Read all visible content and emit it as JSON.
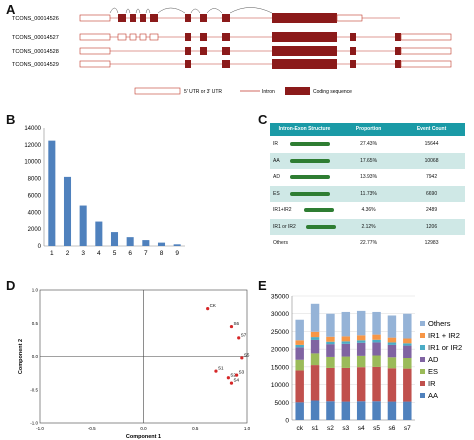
{
  "panels": {
    "a": "A",
    "b": "B",
    "c": "C",
    "d": "D",
    "e": "E"
  },
  "panel_a": {
    "transcripts": [
      "TCONS_00014526",
      "TCONS_00014527",
      "TCONS_00014528",
      "TCONS_00014529"
    ],
    "legend": {
      "utr": "5' UTR or 3' UTR",
      "intron": "Intron",
      "coding": "Coding sequence"
    },
    "colors": {
      "coding": "#8b1a1a",
      "utr_outline": "#c0392b",
      "intron": "#c0392b"
    }
  },
  "panel_c": {
    "headers": [
      "Intron-Exon Structure",
      "Proportion",
      "Event Count"
    ],
    "rows": [
      {
        "type": "IR",
        "proportion": "27.43%",
        "count": "15644"
      },
      {
        "type": "AA",
        "proportion": "17.65%",
        "count": "10068"
      },
      {
        "type": "AD",
        "proportion": "13.93%",
        "count": "7942"
      },
      {
        "type": "ES",
        "proportion": "11.73%",
        "count": "6690"
      },
      {
        "type": "IR1+IR2",
        "proportion": "4.36%",
        "count": "2489"
      },
      {
        "type": "IR1 or IR2",
        "proportion": "2.12%",
        "count": "1206"
      },
      {
        "type": "Others",
        "proportion": "22.77%",
        "count": "12983"
      }
    ],
    "colors": {
      "header": "#1a9aa6",
      "shade": "#cfe8e6"
    }
  },
  "chart_data": [
    {
      "panel": "B",
      "type": "bar",
      "categories": [
        "1",
        "2",
        "3",
        "4",
        "5",
        "6",
        "7",
        "8",
        "9"
      ],
      "values": [
        12500,
        8200,
        4800,
        2900,
        1650,
        1050,
        700,
        400,
        200
      ],
      "ylim": [
        0,
        14000
      ],
      "yticks": [
        "0",
        "2000",
        "4000",
        "6000",
        "8000",
        "10000",
        "12000",
        "14000"
      ],
      "color": "#4f81bd"
    },
    {
      "panel": "D",
      "type": "scatter",
      "xlabel": "Component 1",
      "ylabel": "Component 2",
      "xlim": [
        -1.0,
        1.0
      ],
      "ylim": [
        -1.0,
        1.0
      ],
      "xticks": [
        "-1.0",
        "-0.5",
        "0.0",
        "0.5",
        "1.0"
      ],
      "yticks": [
        "-1.0",
        "-0.5",
        "0.0",
        "0.5",
        "1.0"
      ],
      "points": [
        {
          "label": "CK",
          "x": 0.62,
          "y": 0.72
        },
        {
          "label": "S6",
          "x": 0.85,
          "y": 0.45
        },
        {
          "label": "S7",
          "x": 0.92,
          "y": 0.28
        },
        {
          "label": "S5",
          "x": 0.95,
          "y": -0.02
        },
        {
          "label": "S1",
          "x": 0.7,
          "y": -0.22
        },
        {
          "label": "S2",
          "x": 0.82,
          "y": -0.32
        },
        {
          "label": "S3",
          "x": 0.9,
          "y": -0.28
        },
        {
          "label": "S4",
          "x": 0.85,
          "y": -0.4
        }
      ],
      "color": "#d62728"
    },
    {
      "panel": "E",
      "type": "bar",
      "stacked": true,
      "categories": [
        "ck",
        "s1",
        "s2",
        "s3",
        "s4",
        "s5",
        "s6",
        "s7"
      ],
      "ylim": [
        0,
        35000
      ],
      "yticks": [
        "0",
        "5000",
        "10000",
        "15000",
        "20000",
        "25000",
        "30000",
        "35000"
      ],
      "series": [
        {
          "name": "AA",
          "color": "#4f81bd",
          "values": [
            5000,
            5500,
            5300,
            5200,
            5300,
            5300,
            5200,
            5200
          ]
        },
        {
          "name": "IR",
          "color": "#c0504d",
          "values": [
            9000,
            10000,
            9400,
            9500,
            9600,
            9700,
            9400,
            9300
          ]
        },
        {
          "name": "ES",
          "color": "#9bbb59",
          "values": [
            3000,
            3300,
            3100,
            3200,
            3200,
            3200,
            3100,
            3000
          ]
        },
        {
          "name": "AD",
          "color": "#8064a2",
          "values": [
            3500,
            3800,
            3600,
            3600,
            3700,
            3700,
            3500,
            3500
          ]
        },
        {
          "name": "IR1 or IR2",
          "color": "#4bacc6",
          "values": [
            700,
            800,
            700,
            700,
            700,
            750,
            700,
            650
          ]
        },
        {
          "name": "IR1 + IR2",
          "color": "#f79646",
          "values": [
            1300,
            1500,
            1400,
            1400,
            1400,
            1450,
            1350,
            1350
          ]
        },
        {
          "name": "Others",
          "color": "#95b3d7",
          "values": [
            5800,
            7900,
            6500,
            6900,
            6900,
            6400,
            6250,
            7000
          ]
        }
      ],
      "legend": "right"
    }
  ]
}
